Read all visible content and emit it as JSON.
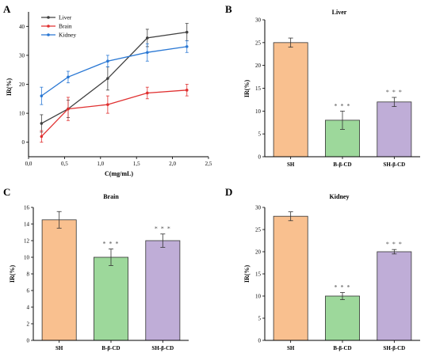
{
  "chart_data": [
    {
      "panel": "A",
      "type": "line",
      "title": "",
      "xlabel": "C(mg/mL)",
      "ylabel": "IR(%)",
      "xlim": [
        0.0,
        2.5
      ],
      "ylim": [
        -5,
        45
      ],
      "xticks": [
        "0.0",
        "0.5",
        "1.0",
        "1.5",
        "2.0",
        "2.5"
      ],
      "yticks": [
        "0",
        "10",
        "20",
        "30",
        "40"
      ],
      "legend": "top-left",
      "series": [
        {
          "name": "Liver",
          "color": "#404040",
          "x": [
            0.18,
            0.55,
            1.1,
            1.65,
            2.2
          ],
          "values": [
            6.5,
            11.5,
            22,
            36,
            38
          ],
          "errors": [
            3,
            3,
            4,
            3,
            3
          ]
        },
        {
          "name": "Brain",
          "color": "#e03030",
          "x": [
            0.18,
            0.55,
            1.1,
            1.65,
            2.2
          ],
          "values": [
            2,
            11.5,
            13,
            17,
            18
          ],
          "errors": [
            2,
            4,
            3,
            2,
            2
          ]
        },
        {
          "name": "Kidney",
          "color": "#2a78d4",
          "x": [
            0.18,
            0.55,
            1.1,
            1.65,
            2.2
          ],
          "values": [
            16,
            22.5,
            28,
            31,
            33
          ],
          "errors": [
            3,
            2,
            2,
            3,
            2
          ]
        }
      ]
    },
    {
      "panel": "B",
      "type": "bar",
      "title": "Liver",
      "xlabel": "",
      "ylabel": "IR(%)",
      "ylim": [
        0,
        30
      ],
      "yticks": [
        "0",
        "5",
        "10",
        "15",
        "20",
        "25",
        "30"
      ],
      "categories": [
        "SH",
        "B-β-CD",
        "SH-β-CD"
      ],
      "values": [
        25,
        8,
        12
      ],
      "errors": [
        1,
        2,
        1
      ],
      "significance": [
        "",
        "***",
        "***"
      ]
    },
    {
      "panel": "C",
      "type": "bar",
      "title": "Brain",
      "xlabel": "",
      "ylabel": "IR(%)",
      "ylim": [
        0,
        16
      ],
      "yticks": [
        "0",
        "2",
        "4",
        "6",
        "8",
        "10",
        "12",
        "14",
        "16"
      ],
      "categories": [
        "SH",
        "B-β-CD",
        "SH-β-CD"
      ],
      "values": [
        14.5,
        10,
        12
      ],
      "errors": [
        1,
        1,
        0.8
      ],
      "significance": [
        "",
        "***",
        "***"
      ]
    },
    {
      "panel": "D",
      "type": "bar",
      "title": "Kidney",
      "xlabel": "",
      "ylabel": "IR(%)",
      "ylim": [
        0,
        30
      ],
      "yticks": [
        "0",
        "5",
        "10",
        "15",
        "20",
        "25",
        "30"
      ],
      "categories": [
        "SH",
        "B-β-CD",
        "SH-β-CD"
      ],
      "values": [
        28,
        10,
        20
      ],
      "errors": [
        1,
        0.8,
        0.5
      ],
      "significance": [
        "",
        "***",
        "***"
      ]
    }
  ],
  "bar_colors": [
    "#f9c08f",
    "#9dd89b",
    "#bfadd7"
  ]
}
